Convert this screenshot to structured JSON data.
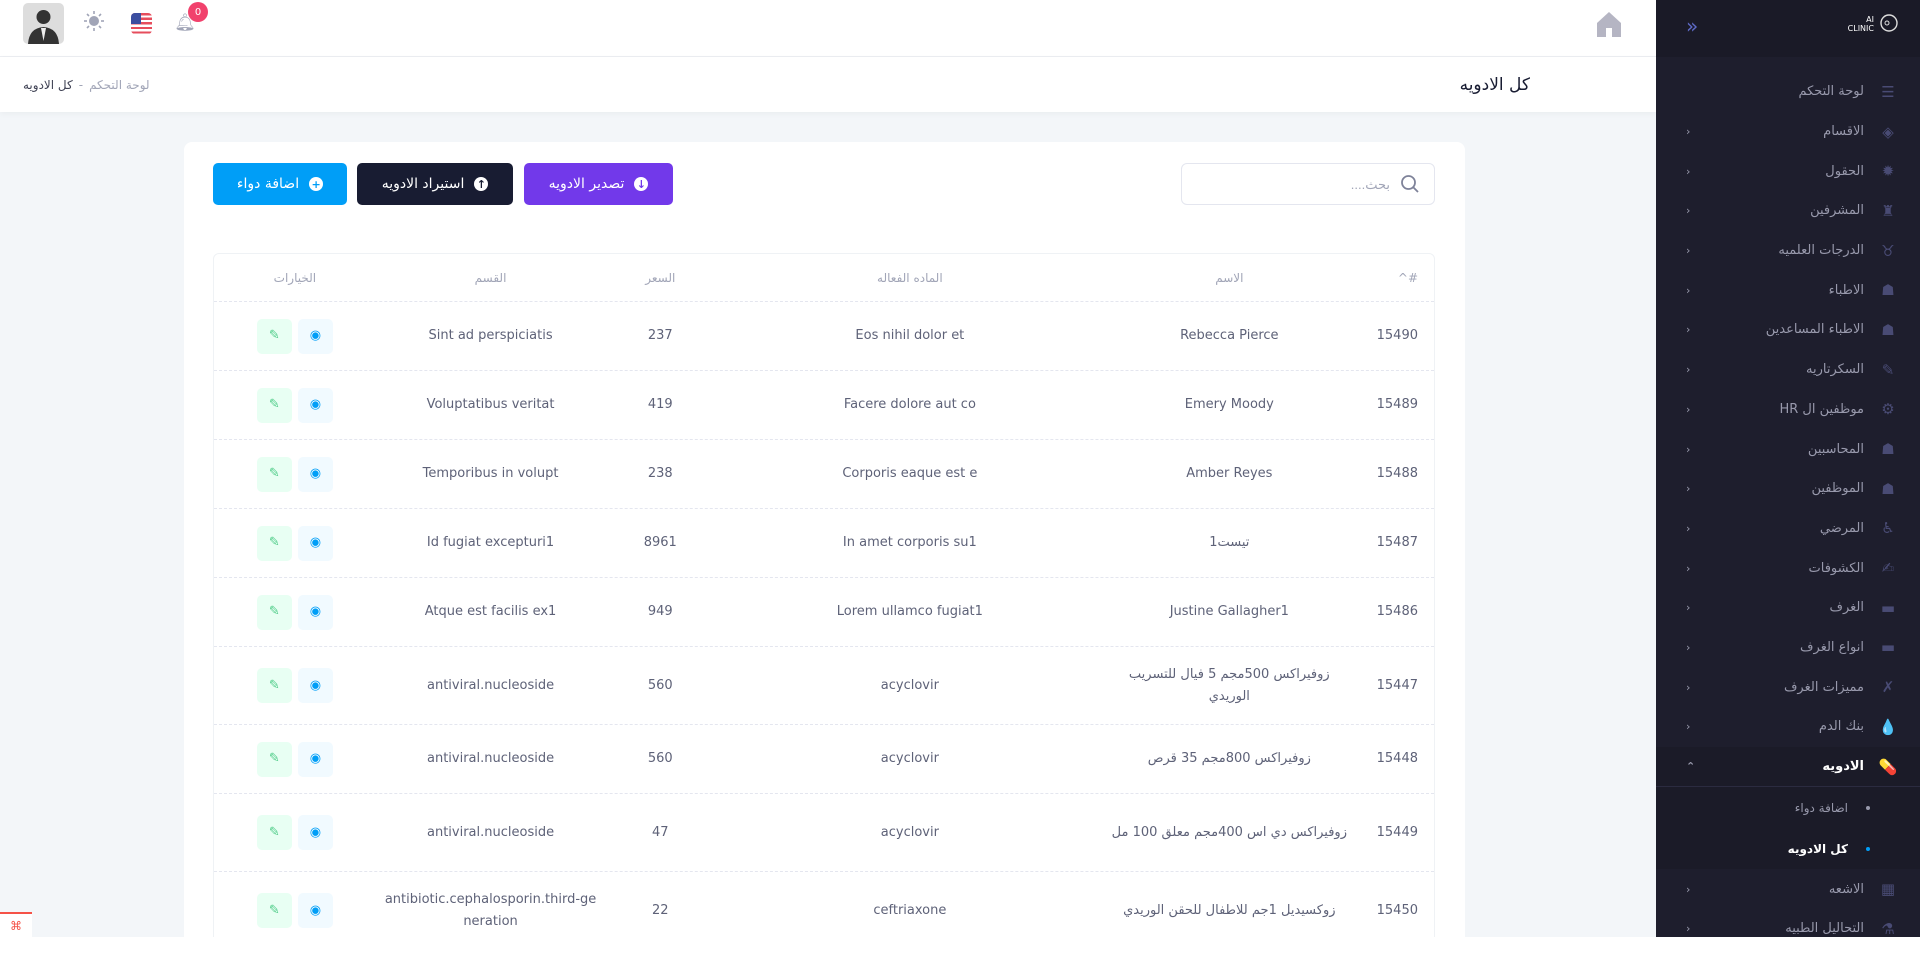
{
  "topbar": {
    "notification_count": "0",
    "icons": [
      "avatar",
      "sun-icon",
      "us-flag-icon",
      "bell-icon",
      "home-icon"
    ]
  },
  "page": {
    "title": "كل الادويه",
    "breadcrumb": [
      "لوحة التحكم",
      "كل الادويه"
    ],
    "breadcrumb_sep": "-"
  },
  "toolbar": {
    "search_placeholder": "بحث....",
    "export_label": "تصدير الادويه",
    "import_label": "استيراد الادويه",
    "add_label": "اضافة دواء",
    "colors": {
      "add": "#009ef7",
      "import": "#181c32",
      "export": "#7239ea"
    }
  },
  "table": {
    "headers": {
      "id": "#",
      "sort": "^",
      "name": "الاسم",
      "active": "الماده الفعاله",
      "price": "السعر",
      "category": "القسم",
      "options": "الخيارات"
    },
    "rows": [
      {
        "id": "15490",
        "name": "Rebecca Pierce",
        "active": "Eos nihil dolor et",
        "price": "237",
        "category": "Sint ad perspiciatis"
      },
      {
        "id": "15489",
        "name": "Emery Moody",
        "active": "Facere dolore aut co",
        "price": "419",
        "category": "Voluptatibus veritat"
      },
      {
        "id": "15488",
        "name": "Amber Reyes",
        "active": "Corporis eaque est e",
        "price": "238",
        "category": "Temporibus in volupt"
      },
      {
        "id": "15487",
        "name": "تيست1",
        "active": "In amet corporis su1",
        "price": "8961",
        "category": "Id fugiat excepturi1"
      },
      {
        "id": "15486",
        "name": "Justine Gallagher1",
        "active": "Lorem ullamco fugiat1",
        "price": "949",
        "category": "Atque est facilis ex1"
      },
      {
        "id": "15447",
        "name": "زوفيراكس 500مجم 5 فيال للتسريب الوريدي",
        "active": "acyclovir",
        "price": "560",
        "category": "antiviral.nucleoside"
      },
      {
        "id": "15448",
        "name": "زوفيراكس 800مجم 35 قرص",
        "active": "acyclovir",
        "price": "560",
        "category": "antiviral.nucleoside"
      },
      {
        "id": "15449",
        "name": "زوفيراكس دي اس 400مجم معلق 100 مل",
        "active": "acyclovir",
        "price": "47",
        "category": "antiviral.nucleoside"
      },
      {
        "id": "15450",
        "name": "زوكسيديل 1جم للاطفال للحقن الوريدي",
        "active": "ceftriaxone",
        "price": "22",
        "category": "antibiotic.cephalosporin.third-generation"
      }
    ]
  },
  "sidebar": {
    "logo_text": "AI CLINIC",
    "items": [
      {
        "label": "لوحة التحكم",
        "icon": "☰",
        "chev": false
      },
      {
        "label": "الاقسام",
        "icon": "◈",
        "chev": true
      },
      {
        "label": "الحقول",
        "icon": "✹",
        "chev": true
      },
      {
        "label": "المشرفين",
        "icon": "♜",
        "chev": true
      },
      {
        "label": "الدرجات العلميه",
        "icon": "♉",
        "chev": true
      },
      {
        "label": "الاطباء",
        "icon": "☗",
        "chev": true
      },
      {
        "label": "الاطباء المساعدين",
        "icon": "☗",
        "chev": true
      },
      {
        "label": "السكرتاريه",
        "icon": "✎",
        "chev": true
      },
      {
        "label": "موظفين ال HR",
        "icon": "⚙",
        "chev": true
      },
      {
        "label": "المحاسبين",
        "icon": "☗",
        "chev": true
      },
      {
        "label": "الموظفين",
        "icon": "☗",
        "chev": true
      },
      {
        "label": "المرضي",
        "icon": "♿",
        "chev": true
      },
      {
        "label": "الكشوفات",
        "icon": "✍",
        "chev": true
      },
      {
        "label": "الغرف",
        "icon": "▬",
        "chev": true
      },
      {
        "label": "انواع الغرف",
        "icon": "▬",
        "chev": true
      },
      {
        "label": "مميزات الغرف",
        "icon": "✗",
        "chev": true
      },
      {
        "label": "بنك الدم",
        "icon": "💧",
        "chev": true
      },
      {
        "label": "الادويه",
        "icon": "💊",
        "chev": true,
        "active": true
      }
    ],
    "sub_items": [
      {
        "label": "اضافة دواء"
      },
      {
        "label": "كل الادويه",
        "active": true
      }
    ],
    "items_after": [
      {
        "label": "الاشعه",
        "icon": "▦"
      },
      {
        "label": "التحاليل الطبيه",
        "icon": "⚗"
      }
    ]
  }
}
